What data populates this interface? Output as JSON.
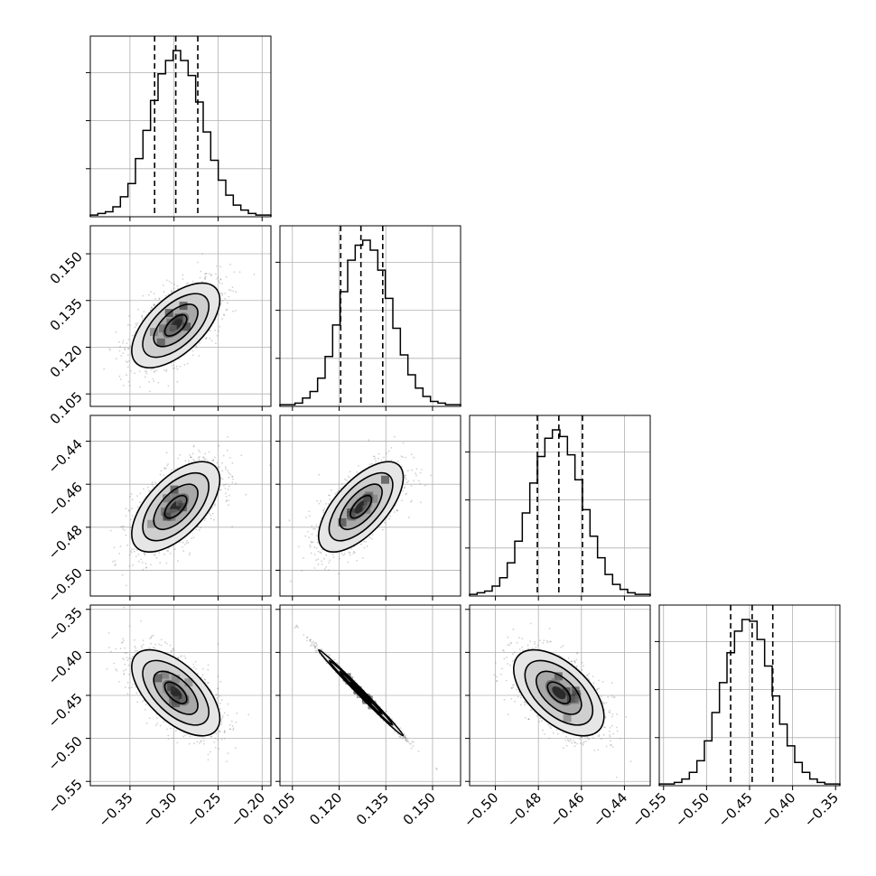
{
  "chart_data": {
    "type": "corner",
    "description_of_layout": "lower-triangular corner plot",
    "parameters": [
      {
        "index": 0,
        "range": [
          -0.395,
          -0.19
        ],
        "ticks": [
          -0.35,
          -0.3,
          -0.25,
          -0.2
        ],
        "tick_labels": [
          "−0.35",
          "−0.30",
          "−0.25",
          "−0.20"
        ],
        "quantiles": [
          -0.322,
          -0.298,
          -0.273
        ],
        "hist_counts": [
          1,
          2,
          3,
          6,
          12,
          20,
          35,
          52,
          70,
          86,
          94,
          100,
          94,
          85,
          69,
          51,
          34,
          22,
          13,
          7,
          4,
          2,
          1,
          1
        ]
      },
      {
        "index": 1,
        "range": [
          0.101,
          0.159
        ],
        "ticks": [
          0.105,
          0.12,
          0.135,
          0.15
        ],
        "tick_labels": [
          "0.105",
          "0.120",
          "0.135",
          "0.150"
        ],
        "quantiles": [
          0.1205,
          0.127,
          0.134
        ],
        "hist_counts": [
          1,
          1,
          2,
          5,
          9,
          17,
          30,
          49,
          69,
          88,
          97,
          100,
          94,
          82,
          65,
          47,
          31,
          19,
          11,
          6,
          3,
          2,
          1,
          1
        ]
      },
      {
        "index": 2,
        "range": [
          -0.512,
          -0.428
        ],
        "ticks": [
          -0.5,
          -0.48,
          -0.46,
          -0.44
        ],
        "tick_labels": [
          "−0.50",
          "−0.48",
          "−0.46",
          "−0.44"
        ],
        "quantiles": [
          -0.4805,
          -0.4705,
          -0.4595
        ],
        "hist_counts": [
          1,
          2,
          3,
          6,
          11,
          20,
          33,
          50,
          68,
          84,
          95,
          100,
          96,
          85,
          70,
          52,
          36,
          23,
          13,
          7,
          4,
          2,
          1,
          1
        ]
      },
      {
        "index": 3,
        "range": [
          -0.555,
          -0.345
        ],
        "ticks": [
          -0.55,
          -0.5,
          -0.45,
          -0.4,
          -0.35
        ],
        "tick_labels": [
          "−0.55",
          "−0.50",
          "−0.45",
          "−0.40",
          "−0.35"
        ],
        "quantiles": [
          -0.472,
          -0.447,
          -0.423
        ],
        "hist_counts": [
          1,
          1,
          2,
          4,
          8,
          15,
          27,
          44,
          62,
          80,
          93,
          100,
          99,
          88,
          72,
          54,
          37,
          24,
          14,
          8,
          4,
          2,
          1,
          1
        ]
      }
    ],
    "pairs": [
      {
        "x": 0,
        "y": 1,
        "center": [
          -0.298,
          0.127
        ],
        "sd": [
          0.025,
          0.0068
        ],
        "corr": 0.6
      },
      {
        "x": 0,
        "y": 2,
        "center": [
          -0.298,
          -0.4705
        ],
        "sd": [
          0.025,
          0.0105
        ],
        "corr": 0.6
      },
      {
        "x": 1,
        "y": 2,
        "center": [
          0.127,
          -0.4705
        ],
        "sd": [
          0.0068,
          0.0105
        ],
        "corr": 0.65
      },
      {
        "x": 0,
        "y": 3,
        "center": [
          -0.298,
          -0.447
        ],
        "sd": [
          0.025,
          0.025
        ],
        "corr": -0.6
      },
      {
        "x": 1,
        "y": 3,
        "center": [
          0.127,
          -0.447
        ],
        "sd": [
          0.0068,
          0.025
        ],
        "corr": -0.995
      },
      {
        "x": 2,
        "y": 3,
        "center": [
          -0.4705,
          -0.447
        ],
        "sd": [
          0.0105,
          0.025
        ],
        "corr": -0.55
      }
    ],
    "contour_levels_sigma": [
      0.5,
      1.0,
      1.5,
      2.0
    ],
    "grid": true,
    "quantile_line_style": "dashed",
    "title": "",
    "xlabel": "",
    "ylabel": ""
  }
}
